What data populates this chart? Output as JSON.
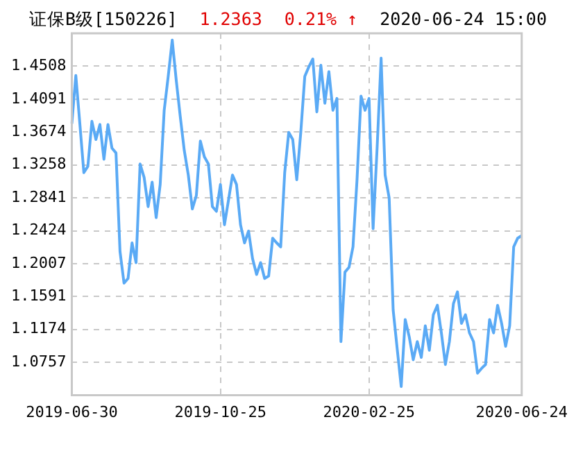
{
  "chart_data": {
    "type": "line",
    "title": "证保B级[150226]",
    "annotations": [
      "1.2363",
      "0.21% ↑",
      "2020-06-24 15:00"
    ],
    "categories": [
      "2019-06-30",
      null,
      null,
      null,
      null,
      null,
      null,
      null,
      null,
      null,
      null,
      null,
      null,
      null,
      null,
      null,
      null,
      null,
      null,
      null,
      null,
      null,
      null,
      null,
      null,
      null,
      null,
      null,
      null,
      null,
      null,
      null,
      null,
      null,
      null,
      null,
      null,
      "2019-10-25",
      null,
      null,
      null,
      null,
      null,
      null,
      null,
      null,
      null,
      null,
      null,
      null,
      null,
      null,
      null,
      null,
      null,
      null,
      null,
      null,
      null,
      null,
      null,
      null,
      null,
      null,
      null,
      null,
      null,
      null,
      null,
      null,
      null,
      null,
      null,
      null,
      "2020-02-25",
      null,
      null,
      null,
      null,
      null,
      null,
      null,
      null,
      null,
      null,
      null,
      null,
      null,
      null,
      null,
      null,
      null,
      null,
      null,
      null,
      null,
      null,
      null,
      null,
      null,
      null,
      null,
      null,
      null,
      null,
      null,
      null,
      null,
      null,
      null,
      null,
      null,
      "2020-06-24"
    ],
    "series": [
      {
        "color": "#5aaaf5",
        "values": [
          1.378,
          1.439,
          1.378,
          1.316,
          1.324,
          1.381,
          1.358,
          1.377,
          1.333,
          1.377,
          1.347,
          1.341,
          1.216,
          1.176,
          1.182,
          1.227,
          1.202,
          1.327,
          1.31,
          1.273,
          1.304,
          1.259,
          1.301,
          1.395,
          1.438,
          1.484,
          1.433,
          1.387,
          1.344,
          1.313,
          1.27,
          1.287,
          1.356,
          1.336,
          1.327,
          1.273,
          1.267,
          1.301,
          1.25,
          1.281,
          1.313,
          1.301,
          1.25,
          1.227,
          1.242,
          1.207,
          1.187,
          1.202,
          1.182,
          1.185,
          1.233,
          1.227,
          1.222,
          1.316,
          1.367,
          1.358,
          1.307,
          1.367,
          1.438,
          1.45,
          1.46,
          1.393,
          1.452,
          1.404,
          1.444,
          1.395,
          1.41,
          1.102,
          1.19,
          1.196,
          1.222,
          1.307,
          1.413,
          1.395,
          1.41,
          1.245,
          1.347,
          1.461,
          1.313,
          1.284,
          1.142,
          1.093,
          1.045,
          1.13,
          1.108,
          1.079,
          1.102,
          1.082,
          1.122,
          1.091,
          1.136,
          1.148,
          1.113,
          1.073,
          1.102,
          1.15,
          1.165,
          1.125,
          1.136,
          1.113,
          1.102,
          1.062,
          1.068,
          1.073,
          1.13,
          1.113,
          1.148,
          1.125,
          1.096,
          1.122,
          1.222,
          1.233,
          1.2363
        ]
      }
    ],
    "ylim": [
      1.034,
      1.4925
    ],
    "yticks": [
      1.0757,
      1.1174,
      1.1591,
      1.2007,
      1.2424,
      1.2841,
      1.3258,
      1.3674,
      1.4091,
      1.4508
    ],
    "grid": true,
    "legend": false,
    "marker": "none",
    "line_style": "solid"
  }
}
